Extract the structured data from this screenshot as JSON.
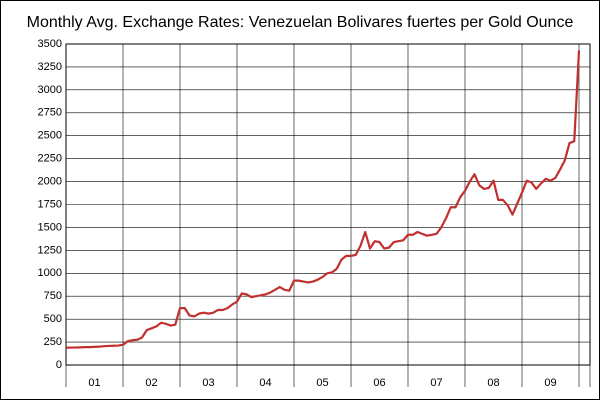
{
  "chart_data": {
    "type": "line",
    "title": "Monthly Avg. Exchange Rates: Venezuelan Bolivares fuertes per Gold Ounce",
    "categories": [
      null,
      null,
      null,
      null,
      null,
      null,
      "01",
      null,
      null,
      null,
      null,
      null,
      null,
      null,
      null,
      null,
      null,
      null,
      "02",
      null,
      null,
      null,
      null,
      null,
      null,
      null,
      null,
      null,
      null,
      null,
      "03",
      null,
      null,
      null,
      null,
      null,
      null,
      null,
      null,
      null,
      null,
      null,
      "04",
      null,
      null,
      null,
      null,
      null,
      null,
      null,
      null,
      null,
      null,
      null,
      "05",
      null,
      null,
      null,
      null,
      null,
      null,
      null,
      null,
      null,
      null,
      null,
      "06",
      null,
      null,
      null,
      null,
      null,
      null,
      null,
      null,
      null,
      null,
      null,
      "07",
      null,
      null,
      null,
      null,
      null,
      null,
      null,
      null,
      null,
      null,
      null,
      "08",
      null,
      null,
      null,
      null,
      null,
      null,
      null,
      null,
      null,
      null,
      null,
      "09",
      null,
      null,
      null,
      null,
      null,
      null
    ],
    "series": [
      {
        "color": "#c0302e",
        "values": [
          188,
          190,
          190,
          192,
          195,
          195,
          198,
          200,
          205,
          208,
          210,
          212,
          220,
          260,
          270,
          275,
          300,
          380,
          400,
          420,
          460,
          450,
          430,
          440,
          620,
          620,
          540,
          530,
          560,
          570,
          560,
          570,
          600,
          600,
          620,
          660,
          690,
          780,
          770,
          740,
          750,
          760,
          770,
          790,
          820,
          850,
          820,
          810,
          920,
          920,
          910,
          900,
          910,
          930,
          960,
          1000,
          1010,
          1050,
          1150,
          1190,
          1190,
          1200,
          1300,
          1450,
          1270,
          1350,
          1340,
          1270,
          1280,
          1340,
          1350,
          1360,
          1420,
          1420,
          1450,
          1430,
          1410,
          1420,
          1430,
          1500,
          1600,
          1720,
          1720,
          1830,
          1900,
          2000,
          2080,
          1960,
          1920,
          1930,
          2010,
          1800,
          1800,
          1740,
          1640,
          1760,
          1880,
          2010,
          1990,
          1920,
          1980,
          2030,
          2010,
          2040,
          2130,
          2230,
          2420,
          2440,
          3430
        ]
      }
    ],
    "ylim": [
      0,
      3500
    ],
    "yticks": [
      0,
      250,
      500,
      750,
      1000,
      1250,
      1500,
      1750,
      2000,
      2250,
      2500,
      2750,
      3000,
      3250,
      3500
    ],
    "grid": true
  }
}
